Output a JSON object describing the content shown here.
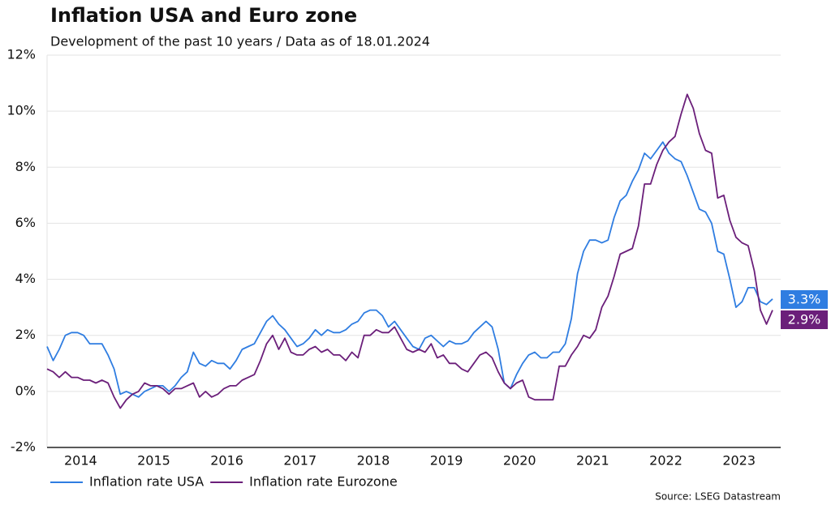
{
  "chart_data": {
    "type": "line",
    "title": "Inflation USA and Euro zone",
    "subtitle": "Development of the past 10 years / Data as of 18.01.2024",
    "source": "Source: LSEG Datastream",
    "categories": [
      null,
      null,
      null,
      null,
      null,
      null,
      "2014",
      null,
      null,
      null,
      null,
      null,
      null,
      null,
      null,
      null,
      null,
      null,
      "2015",
      null,
      null,
      null,
      null,
      null,
      null,
      null,
      null,
      null,
      null,
      null,
      "2016",
      null,
      null,
      null,
      null,
      null,
      null,
      null,
      null,
      null,
      null,
      null,
      "2017",
      null,
      null,
      null,
      null,
      null,
      null,
      null,
      null,
      null,
      null,
      null,
      "2018",
      null,
      null,
      null,
      null,
      null,
      null,
      null,
      null,
      null,
      null,
      null,
      "2019",
      null,
      null,
      null,
      null,
      null,
      null,
      null,
      null,
      null,
      null,
      null,
      "2020",
      null,
      null,
      null,
      null,
      null,
      null,
      null,
      null,
      null,
      null,
      null,
      "2021",
      null,
      null,
      null,
      null,
      null,
      null,
      null,
      null,
      null,
      null,
      null,
      "2022",
      null,
      null,
      null,
      null,
      null,
      null,
      null,
      null,
      null,
      null,
      null,
      "2023",
      null,
      null,
      null,
      null,
      null
    ],
    "series": [
      {
        "name": "Inflation rate USA",
        "color": "#2f7de1",
        "end_label": "3.3%",
        "values": [
          1.6,
          1.1,
          1.5,
          2.0,
          2.1,
          2.1,
          2.0,
          1.7,
          1.7,
          1.7,
          1.3,
          0.8,
          -0.1,
          0.0,
          -0.1,
          -0.2,
          0.0,
          0.1,
          0.2,
          0.2,
          0.0,
          0.2,
          0.5,
          0.7,
          1.4,
          1.0,
          0.9,
          1.1,
          1.0,
          1.0,
          0.8,
          1.1,
          1.5,
          1.6,
          1.7,
          2.1,
          2.5,
          2.7,
          2.4,
          2.2,
          1.9,
          1.6,
          1.7,
          1.9,
          2.2,
          2.0,
          2.2,
          2.1,
          2.1,
          2.2,
          2.4,
          2.5,
          2.8,
          2.9,
          2.9,
          2.7,
          2.3,
          2.5,
          2.2,
          1.9,
          1.6,
          1.5,
          1.9,
          2.0,
          1.8,
          1.6,
          1.8,
          1.7,
          1.7,
          1.8,
          2.1,
          2.3,
          2.5,
          2.3,
          1.5,
          0.3,
          0.1,
          0.6,
          1.0,
          1.3,
          1.4,
          1.2,
          1.2,
          1.4,
          1.4,
          1.7,
          2.6,
          4.2,
          5.0,
          5.4,
          5.4,
          5.3,
          5.4,
          6.2,
          6.8,
          7.0,
          7.5,
          7.9,
          8.5,
          8.3,
          8.6,
          8.9,
          8.5,
          8.3,
          8.2,
          7.7,
          7.1,
          6.5,
          6.4,
          6.0,
          5.0,
          4.9,
          4.0,
          3.0,
          3.2,
          3.7,
          3.7,
          3.2,
          3.1,
          3.3
        ]
      },
      {
        "name": "Inflation rate Eurozone",
        "color": "#6b1f7a",
        "end_label": "2.9%",
        "values": [
          0.8,
          0.7,
          0.5,
          0.7,
          0.5,
          0.5,
          0.4,
          0.4,
          0.3,
          0.4,
          0.3,
          -0.2,
          -0.6,
          -0.3,
          -0.1,
          0.0,
          0.3,
          0.2,
          0.2,
          0.1,
          -0.1,
          0.1,
          0.1,
          0.2,
          0.3,
          -0.2,
          0.0,
          -0.2,
          -0.1,
          0.1,
          0.2,
          0.2,
          0.4,
          0.5,
          0.6,
          1.1,
          1.7,
          2.0,
          1.5,
          1.9,
          1.4,
          1.3,
          1.3,
          1.5,
          1.6,
          1.4,
          1.5,
          1.3,
          1.3,
          1.1,
          1.4,
          1.2,
          2.0,
          2.0,
          2.2,
          2.1,
          2.1,
          2.3,
          1.9,
          1.5,
          1.4,
          1.5,
          1.4,
          1.7,
          1.2,
          1.3,
          1.0,
          1.0,
          0.8,
          0.7,
          1.0,
          1.3,
          1.4,
          1.2,
          0.7,
          0.3,
          0.1,
          0.3,
          0.4,
          -0.2,
          -0.3,
          -0.3,
          -0.3,
          -0.3,
          0.9,
          0.9,
          1.3,
          1.6,
          2.0,
          1.9,
          2.2,
          3.0,
          3.4,
          4.1,
          4.9,
          5.0,
          5.1,
          5.9,
          7.4,
          7.4,
          8.1,
          8.6,
          8.9,
          9.1,
          9.9,
          10.6,
          10.1,
          9.2,
          8.6,
          8.5,
          6.9,
          7.0,
          6.1,
          5.5,
          5.3,
          5.2,
          4.3,
          2.9,
          2.4,
          2.9
        ]
      }
    ],
    "ylim": [
      -2,
      12
    ],
    "yticks": [
      {
        "value": -2,
        "label": "-2%"
      },
      {
        "value": 0,
        "label": "0%"
      },
      {
        "value": 2,
        "label": "2%"
      },
      {
        "value": 4,
        "label": "4%"
      },
      {
        "value": 6,
        "label": "6%"
      },
      {
        "value": 8,
        "label": "8%"
      },
      {
        "value": 10,
        "label": "10%"
      },
      {
        "value": 12,
        "label": "12%"
      }
    ],
    "grid": true,
    "legend": "bottom-left"
  }
}
